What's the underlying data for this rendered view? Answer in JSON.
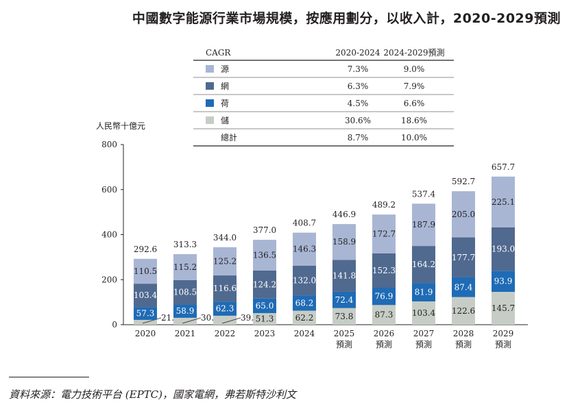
{
  "title": "中國數字能源行業市場規模，按應用劃分，以收入計，2020-2029預測",
  "source": "資料來源：電力技術平台 (EPTC)，國家電網，弗若斯特沙利文",
  "chart_data": {
    "type": "bar",
    "stacked": true,
    "ylabel": "人民幣十億元",
    "ylim": [
      0,
      800
    ],
    "yticks": [
      0,
      200,
      400,
      600,
      800
    ],
    "categories": [
      "2020",
      "2021",
      "2022",
      "2023",
      "2024",
      "2025",
      "2026",
      "2027",
      "2028",
      "2029"
    ],
    "category_sublabels": [
      "",
      "",
      "",
      "",
      "",
      "預測",
      "預測",
      "預測",
      "預測",
      "預測"
    ],
    "series": [
      {
        "name": "儲",
        "color": "#c6cdc6",
        "values": [
          21.4,
          30.7,
          39.9,
          51.3,
          62.2,
          73.8,
          87.3,
          103.4,
          122.6,
          145.7
        ]
      },
      {
        "name": "荷",
        "color": "#1f6bb5",
        "values": [
          57.3,
          58.9,
          62.3,
          65.0,
          68.2,
          72.4,
          76.9,
          81.9,
          87.4,
          93.9
        ]
      },
      {
        "name": "網",
        "color": "#50698f",
        "values": [
          103.4,
          108.5,
          116.6,
          124.2,
          132.0,
          141.8,
          152.3,
          164.2,
          177.7,
          193.0
        ]
      },
      {
        "name": "源",
        "color": "#a8b6d4",
        "values": [
          110.5,
          115.2,
          125.2,
          136.5,
          146.3,
          158.9,
          172.7,
          187.9,
          205.0,
          225.1
        ]
      }
    ],
    "totals": [
      292.6,
      313.3,
      344.0,
      377.0,
      408.7,
      446.9,
      489.2,
      537.4,
      592.7,
      657.7
    ],
    "cagr_table": {
      "header": [
        "CAGR",
        "2020-2024",
        "2024-2029預測"
      ],
      "rows": [
        {
          "label": "源",
          "color": "#a8b6d4",
          "v1": "7.3%",
          "v2": "9.0%"
        },
        {
          "label": "網",
          "color": "#50698f",
          "v1": "6.3%",
          "v2": "7.9%"
        },
        {
          "label": "荷",
          "color": "#1f6bb5",
          "v1": "4.5%",
          "v2": "6.6%"
        },
        {
          "label": "儲",
          "color": "#c6cdc6",
          "v1": "30.6%",
          "v2": "18.6%"
        },
        {
          "label": "總計",
          "color": "",
          "v1": "8.7%",
          "v2": "10.0%"
        }
      ]
    }
  }
}
